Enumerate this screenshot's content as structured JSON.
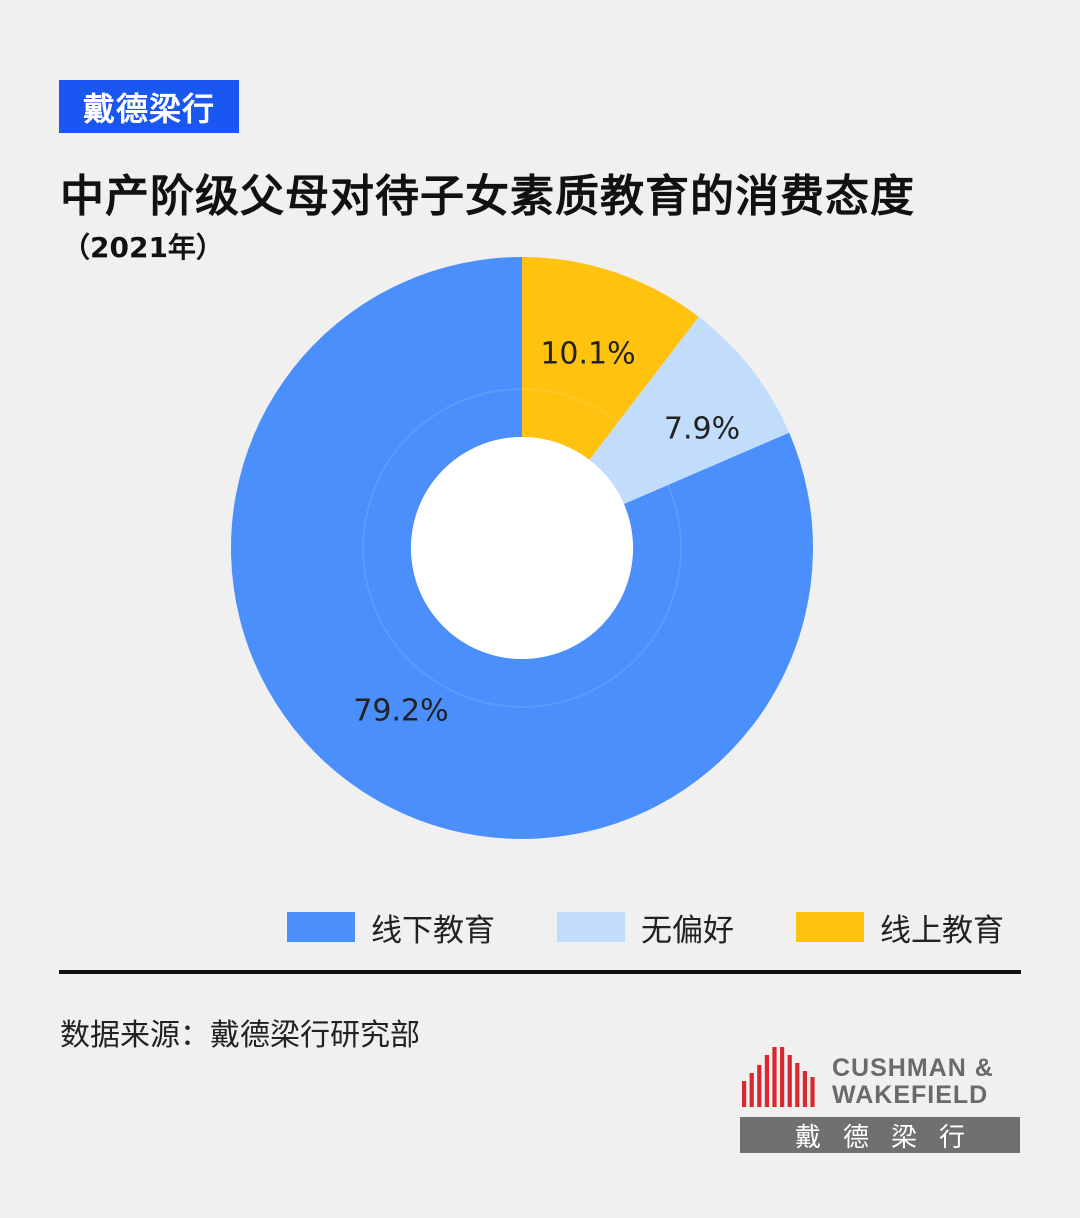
{
  "brand_tag": "戴德梁行",
  "title": "中产阶级父母对待子女素质教育的消费态度",
  "subtitle": "（2021年）",
  "chart_data": {
    "type": "pie",
    "variant": "donut",
    "title": "中产阶级父母对待子女素质教育的消费态度",
    "subtitle": "（2021年）",
    "slices": [
      {
        "label": "线上教育",
        "value": 10.1,
        "display": "10.1%",
        "color": "#ffc20e"
      },
      {
        "label": "无偏好",
        "value": 7.9,
        "display": "7.9%",
        "color": "#c2dcfb"
      },
      {
        "label": "线下教育",
        "value": 79.2,
        "display": "79.2%",
        "color": "#4a8ffb"
      }
    ],
    "legend_order": [
      "线下教育",
      "无偏好",
      "线上教育"
    ],
    "legend_position": "bottom-right",
    "unit": "%"
  },
  "legend": {
    "items": [
      {
        "label": "线下教育",
        "color": "#4a8ffb"
      },
      {
        "label": "无偏好",
        "color": "#c2dcfb"
      },
      {
        "label": "线上教育",
        "color": "#ffc20e"
      }
    ]
  },
  "source": "数据来源：戴德梁行研究部",
  "logo": {
    "line1": "CUSHMAN &",
    "line2": "WAKEFIELD",
    "band": "戴德梁行",
    "color": "#d7282f"
  }
}
